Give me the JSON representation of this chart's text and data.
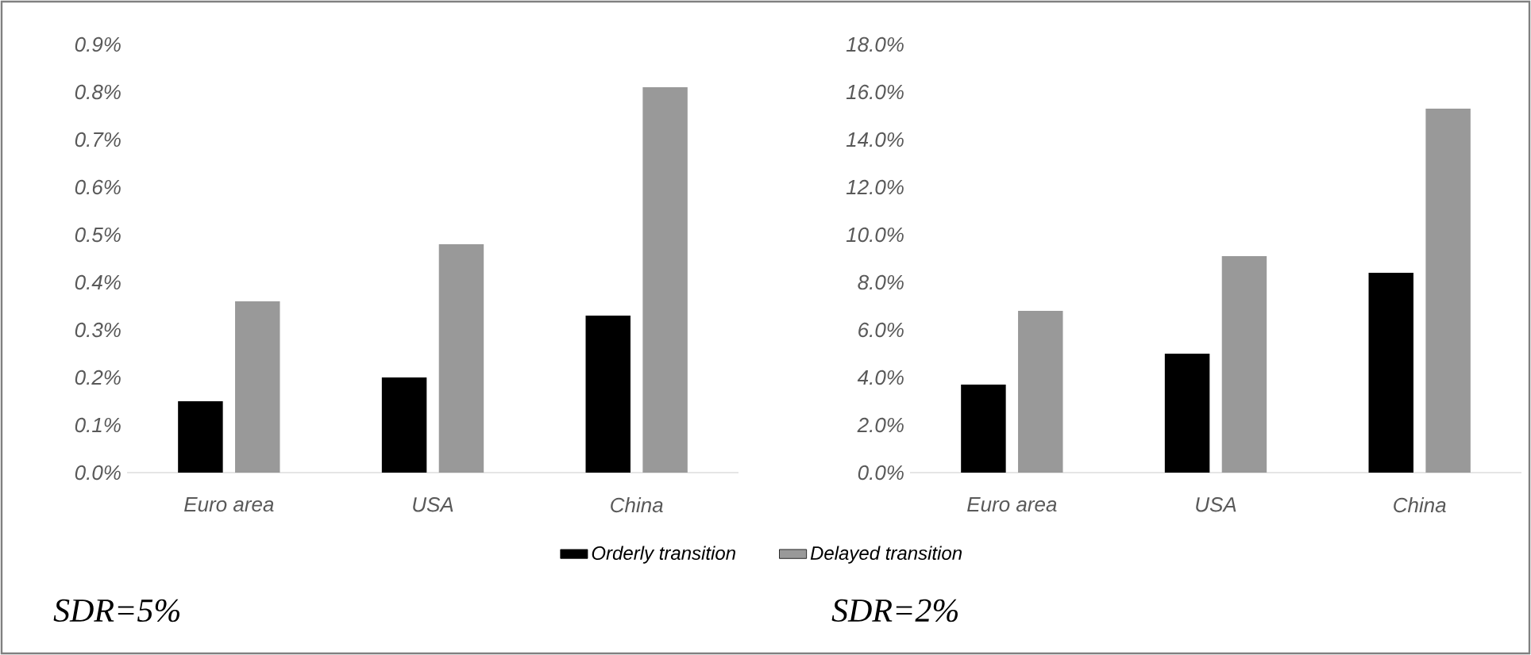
{
  "chart_data": [
    {
      "type": "bar",
      "categories": [
        "Euro area",
        "USA",
        "China"
      ],
      "series": [
        {
          "name": "Orderly transition",
          "color": "#000000",
          "values": [
            0.15,
            0.2,
            0.33
          ]
        },
        {
          "name": "Delayed transition",
          "color": "#999999",
          "values": [
            0.36,
            0.48,
            0.81
          ]
        }
      ],
      "ylim": [
        0,
        0.9
      ],
      "yticks": [
        {
          "value": 0,
          "label": "0.0%"
        },
        {
          "value": 0.1,
          "label": "0.1%"
        },
        {
          "value": 0.2,
          "label": "0.2%"
        },
        {
          "value": 0.3,
          "label": "0.3%"
        },
        {
          "value": 0.4,
          "label": "0.4%"
        },
        {
          "value": 0.5,
          "label": "0.5%"
        },
        {
          "value": 0.6,
          "label": "0.6%"
        },
        {
          "value": 0.7,
          "label": "0.7%"
        },
        {
          "value": 0.8,
          "label": "0.8%"
        },
        {
          "value": 0.9,
          "label": "0.9%"
        }
      ],
      "legend": "bottom",
      "annotations": [
        "SDR=5%"
      ]
    },
    {
      "type": "bar",
      "categories": [
        "Euro area",
        "USA",
        "China"
      ],
      "series": [
        {
          "color": "#000000",
          "values": [
            3.7,
            5.0,
            8.4
          ]
        },
        {
          "color": "#999999",
          "values": [
            6.8,
            9.1,
            15.3
          ]
        }
      ],
      "ylim": [
        0,
        18
      ],
      "yticks": [
        {
          "value": 0,
          "label": "0.0%"
        },
        {
          "value": 2,
          "label": "2.0%"
        },
        {
          "value": 4,
          "label": "4.0%"
        },
        {
          "value": 6,
          "label": "6.0%"
        },
        {
          "value": 8,
          "label": "8.0%"
        },
        {
          "value": 10,
          "label": "10.0%"
        },
        {
          "value": 12,
          "label": "12.0%"
        },
        {
          "value": 14,
          "label": "14.0%"
        },
        {
          "value": 16,
          "label": "16.0%"
        },
        {
          "value": 18,
          "label": "18.0%"
        }
      ],
      "annotations": [
        "SDR=2%"
      ]
    }
  ]
}
